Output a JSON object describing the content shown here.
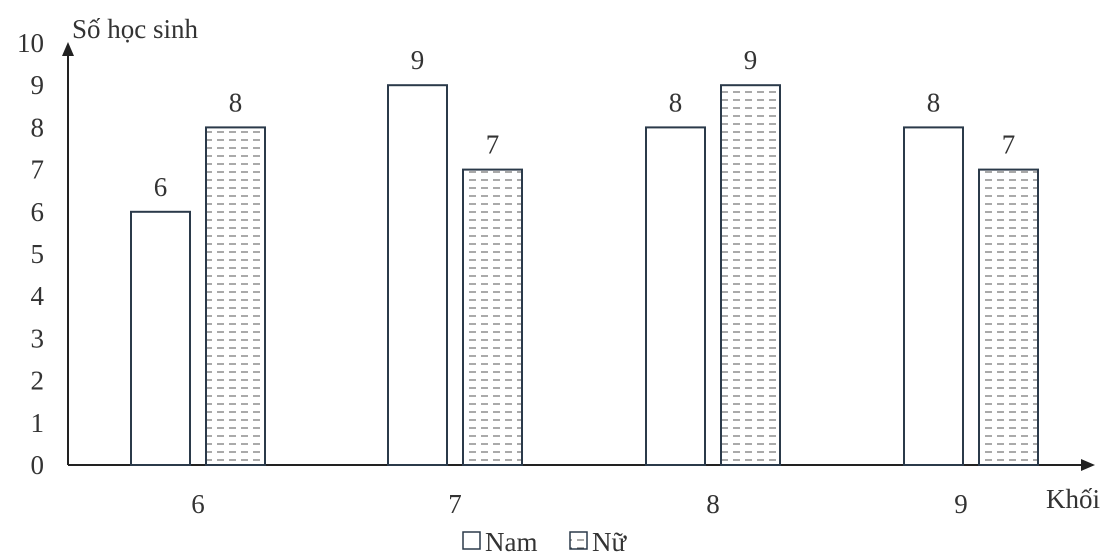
{
  "chart_data": {
    "type": "bar",
    "categories": [
      "6",
      "7",
      "8",
      "9"
    ],
    "series": [
      {
        "name": "Nam",
        "values": [
          6,
          9,
          8,
          8
        ],
        "pattern": "plain",
        "color": "#ffffff"
      },
      {
        "name": "Nữ",
        "values": [
          8,
          7,
          9,
          7
        ],
        "pattern": "dashed-hatch",
        "color": "#ffffff"
      }
    ],
    "ylim": [
      0,
      10
    ],
    "yticks": [
      "0",
      "1",
      "2",
      "3",
      "4",
      "5",
      "6",
      "7",
      "8",
      "9",
      "10"
    ],
    "ylabel": "Số học sinh",
    "xlabel": "Khối",
    "title": "",
    "grid": false,
    "data_labels": true,
    "legend_position": "bottom-center",
    "colors": {
      "stroke": "#2b3a4a",
      "text": "#333333",
      "hatch": "#555555"
    }
  }
}
